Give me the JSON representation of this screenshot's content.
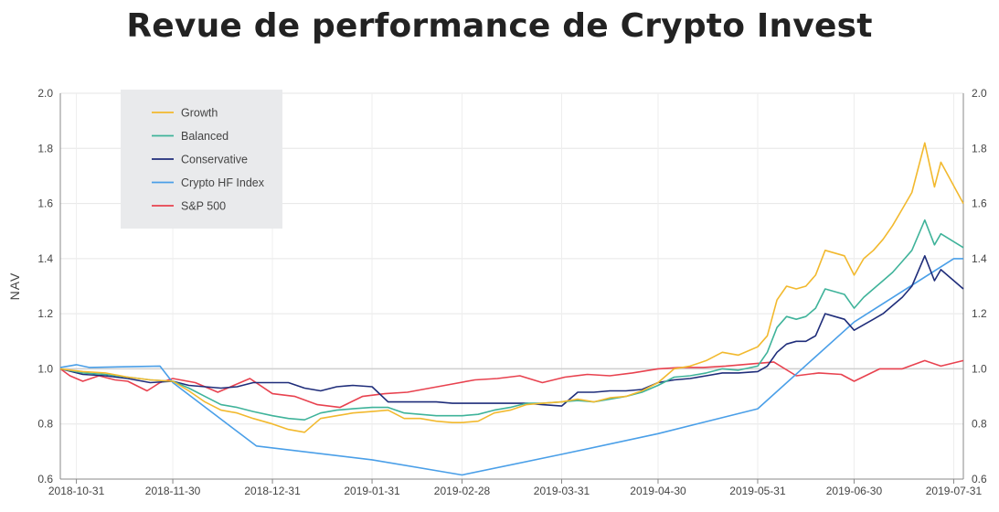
{
  "chart_data": {
    "type": "line",
    "title": "Revue de performance de Crypto Invest",
    "ylabel": "NAV",
    "xlabel": "",
    "ylim": [
      0.6,
      2.0
    ],
    "y_ticks": [
      0.6,
      0.8,
      1.0,
      1.2,
      1.4,
      1.6,
      1.8,
      2.0
    ],
    "y_tick_labels": [
      "0.6",
      "0.8",
      "1.0",
      "1.2",
      "1.4",
      "1.6",
      "1.8",
      "2.0"
    ],
    "x_tick_labels": [
      "2018-10-31",
      "2018-11-30",
      "2018-12-31",
      "2019-01-31",
      "2019-02-28",
      "2019-03-31",
      "2019-04-30",
      "2019-05-31",
      "2019-06-30",
      "2019-07-31"
    ],
    "x_axis": "date",
    "grid": true,
    "reference_line": 1.0,
    "legend_position": "top-left",
    "series": [
      {
        "name": "Growth",
        "color": "#f2b92e",
        "points": [
          [
            "2018-10-26",
            1.0
          ],
          [
            "2018-11-02",
            0.99
          ],
          [
            "2018-11-09",
            0.985
          ],
          [
            "2018-11-16",
            0.97
          ],
          [
            "2018-11-23",
            0.96
          ],
          [
            "2018-11-30",
            0.955
          ],
          [
            "2018-12-05",
            0.92
          ],
          [
            "2018-12-10",
            0.88
          ],
          [
            "2018-12-15",
            0.85
          ],
          [
            "2018-12-20",
            0.84
          ],
          [
            "2018-12-25",
            0.82
          ],
          [
            "2018-12-31",
            0.8
          ],
          [
            "2019-01-05",
            0.78
          ],
          [
            "2019-01-10",
            0.77
          ],
          [
            "2019-01-15",
            0.82
          ],
          [
            "2019-01-20",
            0.83
          ],
          [
            "2019-01-25",
            0.84
          ],
          [
            "2019-01-31",
            0.845
          ],
          [
            "2019-02-05",
            0.85
          ],
          [
            "2019-02-10",
            0.82
          ],
          [
            "2019-02-15",
            0.82
          ],
          [
            "2019-02-20",
            0.81
          ],
          [
            "2019-02-25",
            0.805
          ],
          [
            "2019-02-28",
            0.805
          ],
          [
            "2019-03-05",
            0.81
          ],
          [
            "2019-03-10",
            0.84
          ],
          [
            "2019-03-15",
            0.85
          ],
          [
            "2019-03-20",
            0.87
          ],
          [
            "2019-03-25",
            0.875
          ],
          [
            "2019-03-31",
            0.88
          ],
          [
            "2019-04-05",
            0.89
          ],
          [
            "2019-04-10",
            0.88
          ],
          [
            "2019-04-15",
            0.895
          ],
          [
            "2019-04-20",
            0.9
          ],
          [
            "2019-04-25",
            0.92
          ],
          [
            "2019-04-30",
            0.95
          ],
          [
            "2019-05-05",
            1.0
          ],
          [
            "2019-05-10",
            1.01
          ],
          [
            "2019-05-15",
            1.03
          ],
          [
            "2019-05-20",
            1.06
          ],
          [
            "2019-05-25",
            1.05
          ],
          [
            "2019-05-31",
            1.08
          ],
          [
            "2019-06-03",
            1.12
          ],
          [
            "2019-06-06",
            1.25
          ],
          [
            "2019-06-09",
            1.3
          ],
          [
            "2019-06-12",
            1.29
          ],
          [
            "2019-06-15",
            1.3
          ],
          [
            "2019-06-18",
            1.34
          ],
          [
            "2019-06-21",
            1.43
          ],
          [
            "2019-06-24",
            1.42
          ],
          [
            "2019-06-27",
            1.41
          ],
          [
            "2019-06-30",
            1.34
          ],
          [
            "2019-07-03",
            1.4
          ],
          [
            "2019-07-06",
            1.43
          ],
          [
            "2019-07-09",
            1.47
          ],
          [
            "2019-07-12",
            1.52
          ],
          [
            "2019-07-15",
            1.58
          ],
          [
            "2019-07-18",
            1.64
          ],
          [
            "2019-07-22",
            1.82
          ],
          [
            "2019-07-25",
            1.66
          ],
          [
            "2019-07-27",
            1.75
          ],
          [
            "2019-08-03",
            1.6
          ]
        ]
      },
      {
        "name": "Balanced",
        "color": "#3fb39a",
        "points": [
          [
            "2018-10-26",
            1.0
          ],
          [
            "2018-11-02",
            0.985
          ],
          [
            "2018-11-09",
            0.98
          ],
          [
            "2018-11-16",
            0.97
          ],
          [
            "2018-11-23",
            0.96
          ],
          [
            "2018-11-30",
            0.955
          ],
          [
            "2018-12-05",
            0.93
          ],
          [
            "2018-12-10",
            0.9
          ],
          [
            "2018-12-15",
            0.87
          ],
          [
            "2018-12-20",
            0.86
          ],
          [
            "2018-12-25",
            0.845
          ],
          [
            "2018-12-31",
            0.83
          ],
          [
            "2019-01-05",
            0.82
          ],
          [
            "2019-01-10",
            0.815
          ],
          [
            "2019-01-15",
            0.84
          ],
          [
            "2019-01-20",
            0.85
          ],
          [
            "2019-01-25",
            0.855
          ],
          [
            "2019-01-31",
            0.86
          ],
          [
            "2019-02-05",
            0.86
          ],
          [
            "2019-02-10",
            0.84
          ],
          [
            "2019-02-15",
            0.835
          ],
          [
            "2019-02-20",
            0.83
          ],
          [
            "2019-02-25",
            0.83
          ],
          [
            "2019-02-28",
            0.83
          ],
          [
            "2019-03-05",
            0.835
          ],
          [
            "2019-03-10",
            0.85
          ],
          [
            "2019-03-15",
            0.86
          ],
          [
            "2019-03-20",
            0.875
          ],
          [
            "2019-03-25",
            0.875
          ],
          [
            "2019-03-31",
            0.88
          ],
          [
            "2019-04-05",
            0.885
          ],
          [
            "2019-04-10",
            0.88
          ],
          [
            "2019-04-15",
            0.89
          ],
          [
            "2019-04-20",
            0.9
          ],
          [
            "2019-04-25",
            0.915
          ],
          [
            "2019-04-30",
            0.94
          ],
          [
            "2019-05-05",
            0.97
          ],
          [
            "2019-05-10",
            0.975
          ],
          [
            "2019-05-15",
            0.985
          ],
          [
            "2019-05-20",
            1.0
          ],
          [
            "2019-05-25",
            0.995
          ],
          [
            "2019-05-31",
            1.01
          ],
          [
            "2019-06-03",
            1.06
          ],
          [
            "2019-06-06",
            1.15
          ],
          [
            "2019-06-09",
            1.19
          ],
          [
            "2019-06-12",
            1.18
          ],
          [
            "2019-06-15",
            1.19
          ],
          [
            "2019-06-18",
            1.22
          ],
          [
            "2019-06-21",
            1.29
          ],
          [
            "2019-06-24",
            1.28
          ],
          [
            "2019-06-27",
            1.27
          ],
          [
            "2019-06-30",
            1.22
          ],
          [
            "2019-07-03",
            1.26
          ],
          [
            "2019-07-06",
            1.29
          ],
          [
            "2019-07-09",
            1.32
          ],
          [
            "2019-07-12",
            1.35
          ],
          [
            "2019-07-15",
            1.39
          ],
          [
            "2019-07-18",
            1.43
          ],
          [
            "2019-07-22",
            1.54
          ],
          [
            "2019-07-25",
            1.45
          ],
          [
            "2019-07-27",
            1.49
          ],
          [
            "2019-08-03",
            1.44
          ]
        ]
      },
      {
        "name": "Conservative",
        "color": "#1f2d7a",
        "points": [
          [
            "2018-10-26",
            1.0
          ],
          [
            "2018-11-02",
            0.98
          ],
          [
            "2018-11-09",
            0.975
          ],
          [
            "2018-11-16",
            0.965
          ],
          [
            "2018-11-23",
            0.95
          ],
          [
            "2018-11-30",
            0.955
          ],
          [
            "2018-12-05",
            0.94
          ],
          [
            "2018-12-10",
            0.935
          ],
          [
            "2018-12-15",
            0.93
          ],
          [
            "2018-12-20",
            0.935
          ],
          [
            "2018-12-25",
            0.95
          ],
          [
            "2018-12-31",
            0.95
          ],
          [
            "2019-01-05",
            0.95
          ],
          [
            "2019-01-10",
            0.93
          ],
          [
            "2019-01-15",
            0.92
          ],
          [
            "2019-01-20",
            0.935
          ],
          [
            "2019-01-25",
            0.94
          ],
          [
            "2019-01-31",
            0.935
          ],
          [
            "2019-02-05",
            0.88
          ],
          [
            "2019-02-10",
            0.88
          ],
          [
            "2019-02-15",
            0.88
          ],
          [
            "2019-02-20",
            0.88
          ],
          [
            "2019-02-25",
            0.875
          ],
          [
            "2019-02-28",
            0.875
          ],
          [
            "2019-03-05",
            0.875
          ],
          [
            "2019-03-10",
            0.875
          ],
          [
            "2019-03-15",
            0.875
          ],
          [
            "2019-03-20",
            0.875
          ],
          [
            "2019-03-25",
            0.87
          ],
          [
            "2019-03-31",
            0.865
          ],
          [
            "2019-04-05",
            0.915
          ],
          [
            "2019-04-10",
            0.915
          ],
          [
            "2019-04-15",
            0.92
          ],
          [
            "2019-04-20",
            0.92
          ],
          [
            "2019-04-25",
            0.925
          ],
          [
            "2019-04-30",
            0.95
          ],
          [
            "2019-05-05",
            0.96
          ],
          [
            "2019-05-10",
            0.965
          ],
          [
            "2019-05-15",
            0.975
          ],
          [
            "2019-05-20",
            0.985
          ],
          [
            "2019-05-25",
            0.985
          ],
          [
            "2019-05-31",
            0.99
          ],
          [
            "2019-06-03",
            1.01
          ],
          [
            "2019-06-06",
            1.06
          ],
          [
            "2019-06-09",
            1.09
          ],
          [
            "2019-06-12",
            1.1
          ],
          [
            "2019-06-15",
            1.1
          ],
          [
            "2019-06-18",
            1.12
          ],
          [
            "2019-06-21",
            1.2
          ],
          [
            "2019-06-24",
            1.19
          ],
          [
            "2019-06-27",
            1.18
          ],
          [
            "2019-06-30",
            1.14
          ],
          [
            "2019-07-03",
            1.16
          ],
          [
            "2019-07-06",
            1.18
          ],
          [
            "2019-07-09",
            1.2
          ],
          [
            "2019-07-12",
            1.23
          ],
          [
            "2019-07-15",
            1.26
          ],
          [
            "2019-07-18",
            1.3
          ],
          [
            "2019-07-22",
            1.41
          ],
          [
            "2019-07-25",
            1.32
          ],
          [
            "2019-07-27",
            1.36
          ],
          [
            "2019-08-03",
            1.29
          ]
        ]
      },
      {
        "name": "Crypto HF Index",
        "color": "#4a9fe8",
        "points": [
          [
            "2018-10-26",
            1.005
          ],
          [
            "2018-10-31",
            1.015
          ],
          [
            "2018-11-04",
            1.005
          ],
          [
            "2018-11-26",
            1.01
          ],
          [
            "2018-11-30",
            0.95
          ],
          [
            "2018-12-26",
            0.72
          ],
          [
            "2019-01-31",
            0.67
          ],
          [
            "2019-02-28",
            0.615
          ],
          [
            "2019-03-31",
            0.69
          ],
          [
            "2019-04-30",
            0.765
          ],
          [
            "2019-05-31",
            0.855
          ],
          [
            "2019-06-30",
            1.17
          ],
          [
            "2019-07-31",
            1.4
          ],
          [
            "2019-08-03",
            1.4
          ]
        ]
      },
      {
        "name": "S&P 500",
        "color": "#e8424f",
        "points": [
          [
            "2018-10-26",
            1.0
          ],
          [
            "2018-10-29",
            0.975
          ],
          [
            "2018-11-02",
            0.955
          ],
          [
            "2018-11-07",
            0.975
          ],
          [
            "2018-11-12",
            0.96
          ],
          [
            "2018-11-16",
            0.955
          ],
          [
            "2018-11-22",
            0.92
          ],
          [
            "2018-11-26",
            0.95
          ],
          [
            "2018-11-30",
            0.965
          ],
          [
            "2018-12-07",
            0.95
          ],
          [
            "2018-12-14",
            0.915
          ],
          [
            "2018-12-24",
            0.965
          ],
          [
            "2018-12-31",
            0.91
          ],
          [
            "2019-01-07",
            0.9
          ],
          [
            "2019-01-14",
            0.87
          ],
          [
            "2019-01-21",
            0.86
          ],
          [
            "2019-01-28",
            0.9
          ],
          [
            "2019-02-04",
            0.91
          ],
          [
            "2019-02-11",
            0.915
          ],
          [
            "2019-02-18",
            0.93
          ],
          [
            "2019-02-25",
            0.945
          ],
          [
            "2019-03-04",
            0.96
          ],
          [
            "2019-03-11",
            0.965
          ],
          [
            "2019-03-18",
            0.975
          ],
          [
            "2019-03-25",
            0.95
          ],
          [
            "2019-04-01",
            0.97
          ],
          [
            "2019-04-08",
            0.98
          ],
          [
            "2019-04-15",
            0.975
          ],
          [
            "2019-04-22",
            0.985
          ],
          [
            "2019-04-30",
            1.0
          ],
          [
            "2019-05-07",
            1.005
          ],
          [
            "2019-05-14",
            1.005
          ],
          [
            "2019-05-21",
            1.01
          ],
          [
            "2019-05-31",
            1.02
          ],
          [
            "2019-06-05",
            1.025
          ],
          [
            "2019-06-12",
            0.975
          ],
          [
            "2019-06-19",
            0.985
          ],
          [
            "2019-06-26",
            0.98
          ],
          [
            "2019-06-30",
            0.955
          ],
          [
            "2019-07-08",
            1.0
          ],
          [
            "2019-07-15",
            1.0
          ],
          [
            "2019-07-22",
            1.03
          ],
          [
            "2019-07-27",
            1.01
          ],
          [
            "2019-08-03",
            1.03
          ]
        ]
      }
    ]
  }
}
